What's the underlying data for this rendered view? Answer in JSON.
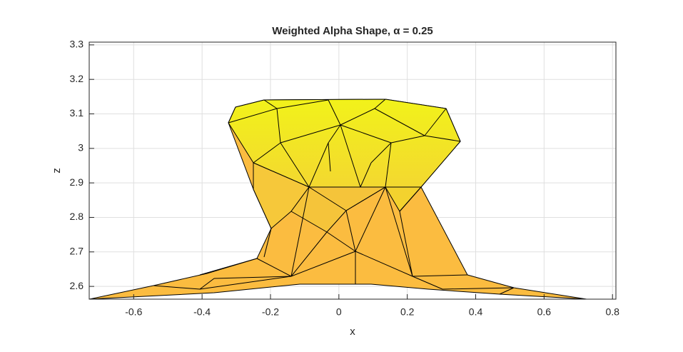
{
  "chart_data": {
    "type": "surface",
    "title": "Weighted Alpha Shape, α = 0.25",
    "xlabel": "x",
    "ylabel": "z",
    "xlim": [
      -0.73,
      0.81
    ],
    "xticks": [
      -0.6,
      -0.4,
      -0.2,
      0,
      0.2,
      0.4,
      0.6,
      0.8
    ],
    "ylim": [
      2.563,
      3.308
    ],
    "yticks": [
      2.6,
      2.7,
      2.8,
      2.9,
      3,
      3.1,
      3.2,
      3.3
    ],
    "grid": true
  }
}
